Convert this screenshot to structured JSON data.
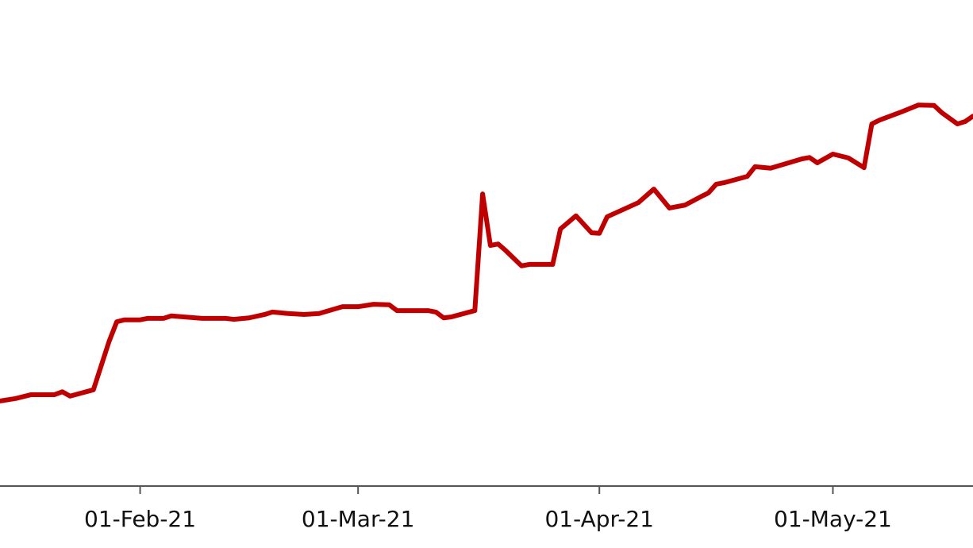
{
  "chart_data": {
    "type": "line",
    "color": "#c00000",
    "x": [
      "2021-01-14",
      "2021-01-16",
      "2021-01-18",
      "2021-01-21",
      "2021-01-22",
      "2021-01-23",
      "2021-01-26",
      "2021-01-28",
      "2021-01-29",
      "2021-01-30",
      "2021-02-01",
      "2021-02-02",
      "2021-02-04",
      "2021-02-05",
      "2021-02-09",
      "2021-02-12",
      "2021-02-13",
      "2021-02-15",
      "2021-02-17",
      "2021-02-18",
      "2021-02-20",
      "2021-02-22",
      "2021-02-24",
      "2021-02-27",
      "2021-03-01",
      "2021-03-03",
      "2021-03-05",
      "2021-03-06",
      "2021-03-10",
      "2021-03-11",
      "2021-03-12",
      "2021-03-13",
      "2021-03-16",
      "2021-03-17",
      "2021-03-18",
      "2021-03-19",
      "2021-03-20",
      "2021-03-22",
      "2021-03-23",
      "2021-03-26",
      "2021-03-27",
      "2021-03-29",
      "2021-03-31",
      "2021-04-01",
      "2021-04-02",
      "2021-04-06",
      "2021-04-08",
      "2021-04-10",
      "2021-04-12",
      "2021-04-14",
      "2021-04-15",
      "2021-04-16",
      "2021-04-17",
      "2021-04-20",
      "2021-04-21",
      "2021-04-23",
      "2021-04-27",
      "2021-04-28",
      "2021-04-29",
      "2021-05-01",
      "2021-05-03",
      "2021-05-05",
      "2021-05-06",
      "2021-05-07",
      "2021-05-10",
      "2021-05-12",
      "2021-05-14",
      "2021-05-15",
      "2021-05-17",
      "2021-05-18",
      "2021-05-19"
    ],
    "values": [
      17.5,
      18.0,
      18.8,
      18.8,
      19.4,
      18.5,
      19.8,
      29.7,
      33.8,
      34.2,
      34.2,
      34.5,
      34.5,
      35.0,
      34.5,
      34.5,
      34.3,
      34.6,
      35.3,
      35.8,
      35.5,
      35.3,
      35.5,
      36.9,
      36.9,
      37.4,
      37.3,
      36.1,
      36.1,
      35.8,
      34.6,
      34.8,
      36.1,
      60.1,
      49.5,
      49.8,
      48.4,
      45.3,
      45.6,
      45.6,
      52.9,
      55.6,
      52.1,
      52.0,
      55.4,
      58.3,
      61.1,
      57.2,
      57.8,
      59.5,
      60.3,
      62.1,
      62.4,
      63.7,
      65.7,
      65.4,
      67.3,
      67.6,
      66.5,
      68.3,
      67.5,
      65.5,
      74.5,
      75.3,
      77.1,
      78.4,
      78.3,
      76.8,
      74.5,
      75.0,
      76.1
    ],
    "xlim": [
      "2021-01-14",
      "2021-05-19"
    ],
    "xticks": [
      {
        "value": "2021-02-01",
        "label": "01-Feb-21"
      },
      {
        "value": "2021-03-01",
        "label": "01-Mar-21"
      },
      {
        "value": "2021-04-01",
        "label": "01-Apr-21"
      },
      {
        "value": "2021-05-01",
        "label": "01-May-21"
      }
    ],
    "ylim": [
      0,
      100
    ]
  }
}
